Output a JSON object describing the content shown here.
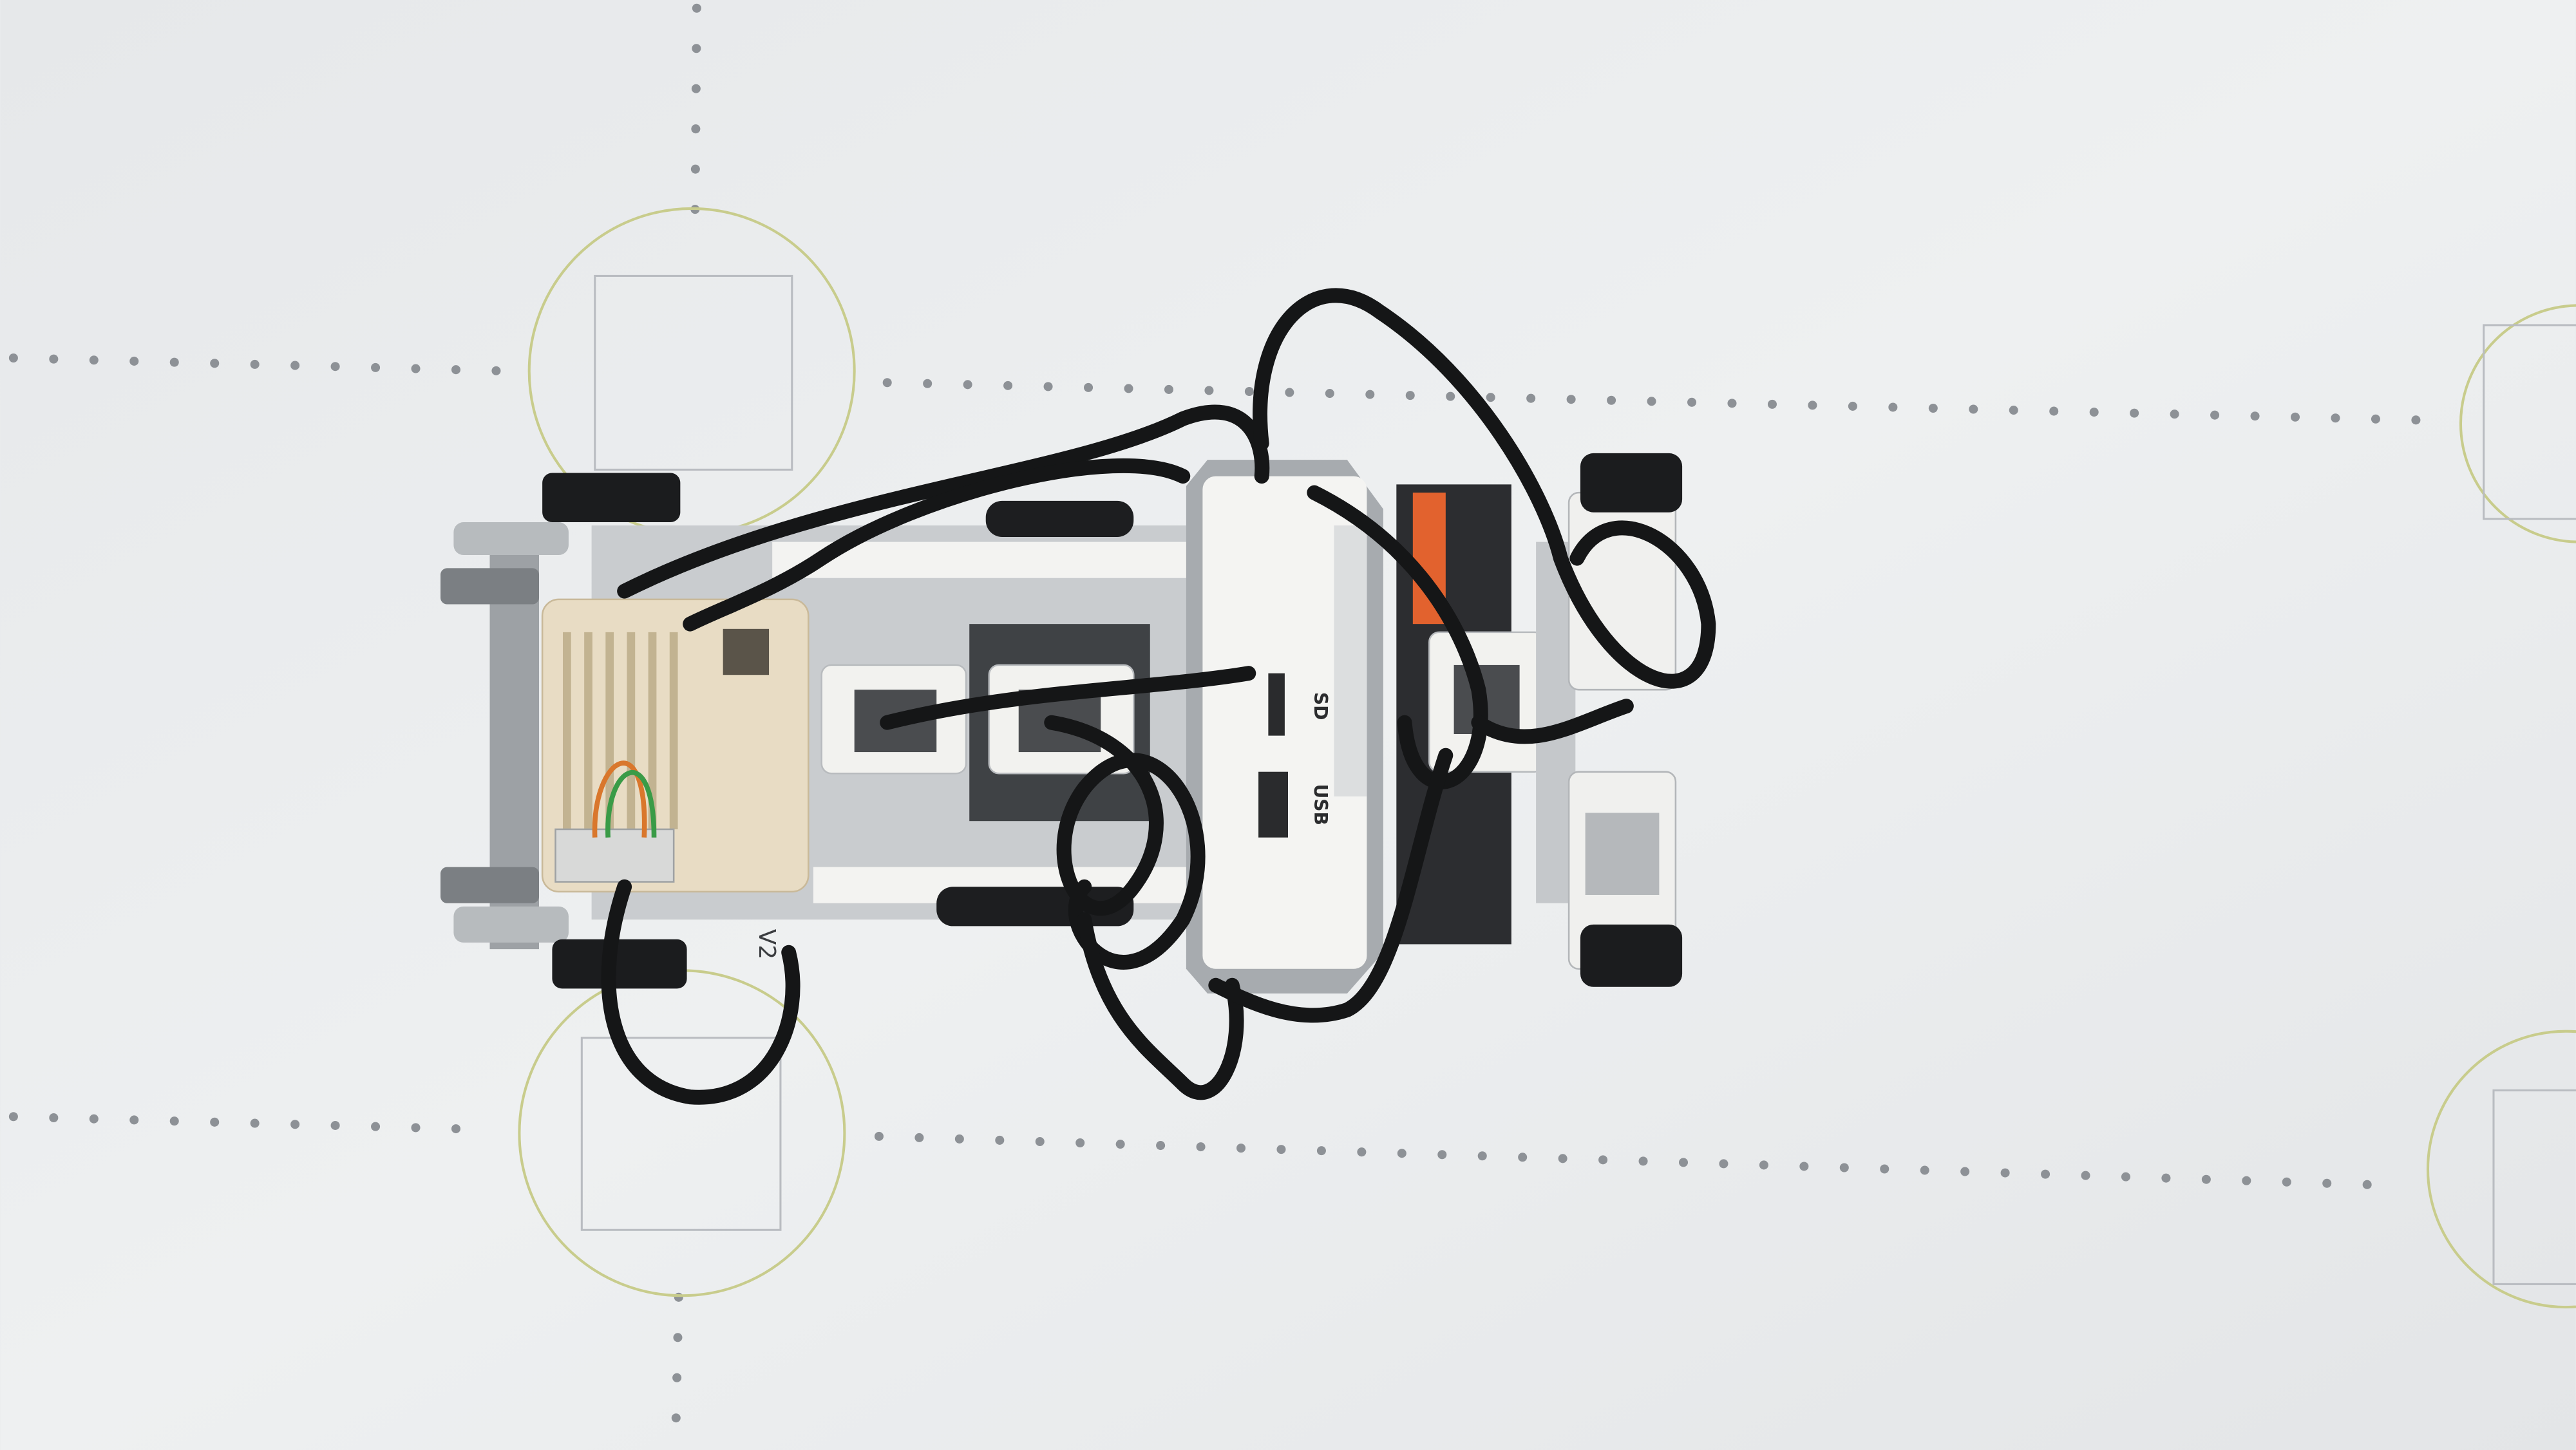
{
  "labels": {
    "sd": "SD",
    "usb": "USB",
    "version": "V2"
  }
}
